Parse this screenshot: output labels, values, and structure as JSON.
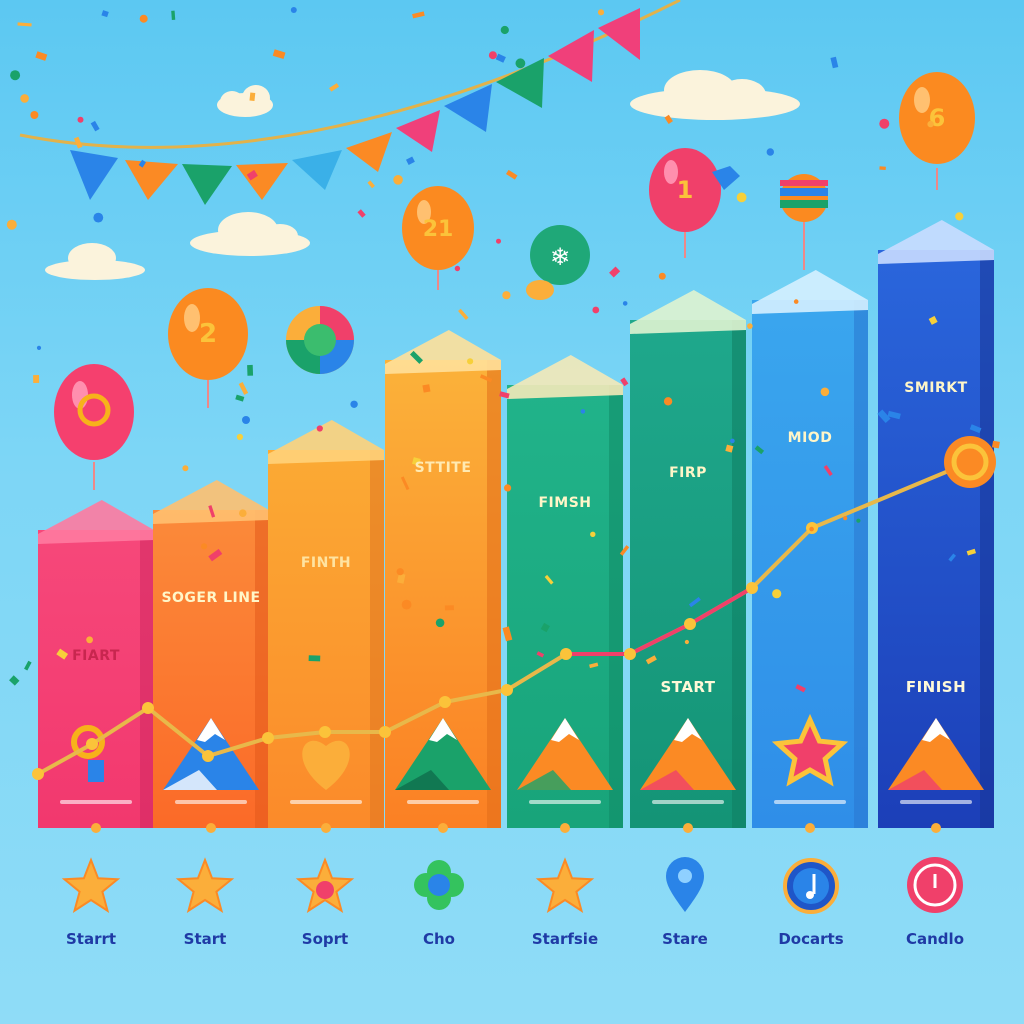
{
  "columns": [
    {
      "label": "FIART",
      "color_top": "#f6487a",
      "color_bottom": "#f2386e",
      "side": "#d02862",
      "top": "#ff7aa0"
    },
    {
      "label": "SOGER LINE",
      "color_top": "#fb8a3a",
      "color_bottom": "#fb6a28",
      "side": "#e35a1c",
      "top": "#ffc070"
    },
    {
      "label": "FINTH",
      "color_top": "#fbaa34",
      "color_bottom": "#fb8a2a",
      "side": "#e07620",
      "top": "#ffd27a"
    },
    {
      "label": "STTITE",
      "color_top": "#fbb23a",
      "color_bottom": "#fb8024",
      "side": "#e26e1a",
      "top": "#ffe09a"
    },
    {
      "label": "FIMSH",
      "color_top": "#21b38a",
      "color_bottom": "#18a47a",
      "side": "#118b66",
      "top": "#f4e9b8"
    },
    {
      "label": "FIRP",
      "color_top": "#1fa88c",
      "color_bottom": "#149476",
      "side": "#0f7d63",
      "top": "#dff3d0"
    },
    {
      "label": "MIOD",
      "color_top": "#3aa6ee",
      "color_bottom": "#2f8ee8",
      "side": "#2a76d0",
      "top": "#d5f0ff"
    },
    {
      "label": "SMIRKT",
      "color_top": "#2a66dc",
      "color_bottom": "#1c3fb8",
      "side": "#183496",
      "top": "#c9dcff"
    }
  ],
  "lower_labels": [
    "START",
    "FINISH"
  ],
  "balloons": [
    {
      "number": "O",
      "color": "#f5406e"
    },
    {
      "number": "2",
      "color": "#fb8a20"
    },
    {
      "number": "21",
      "color": "#fb8a20"
    },
    {
      "number": "1",
      "color": "#f0406a"
    },
    {
      "number": "6",
      "color": "#fb8a20"
    }
  ],
  "bottom_items": [
    {
      "label": "Starrt",
      "icon": "star-icon"
    },
    {
      "label": "Start",
      "icon": "star-icon"
    },
    {
      "label": "Soprt",
      "icon": "star-badge-icon"
    },
    {
      "label": "Cho",
      "icon": "flower-icon"
    },
    {
      "label": "Starfsie",
      "icon": "star-icon"
    },
    {
      "label": "Stare",
      "icon": "map-pin-icon"
    },
    {
      "label": "Docarts",
      "icon": "music-note-icon"
    },
    {
      "label": "Candlo",
      "icon": "power-icon"
    }
  ],
  "line_values": [
    0.21,
    0.26,
    0.32,
    0.24,
    0.27,
    0.28,
    0.28,
    0.33,
    0.35,
    0.41,
    0.41,
    0.46,
    0.52,
    0.62,
    0.73
  ]
}
